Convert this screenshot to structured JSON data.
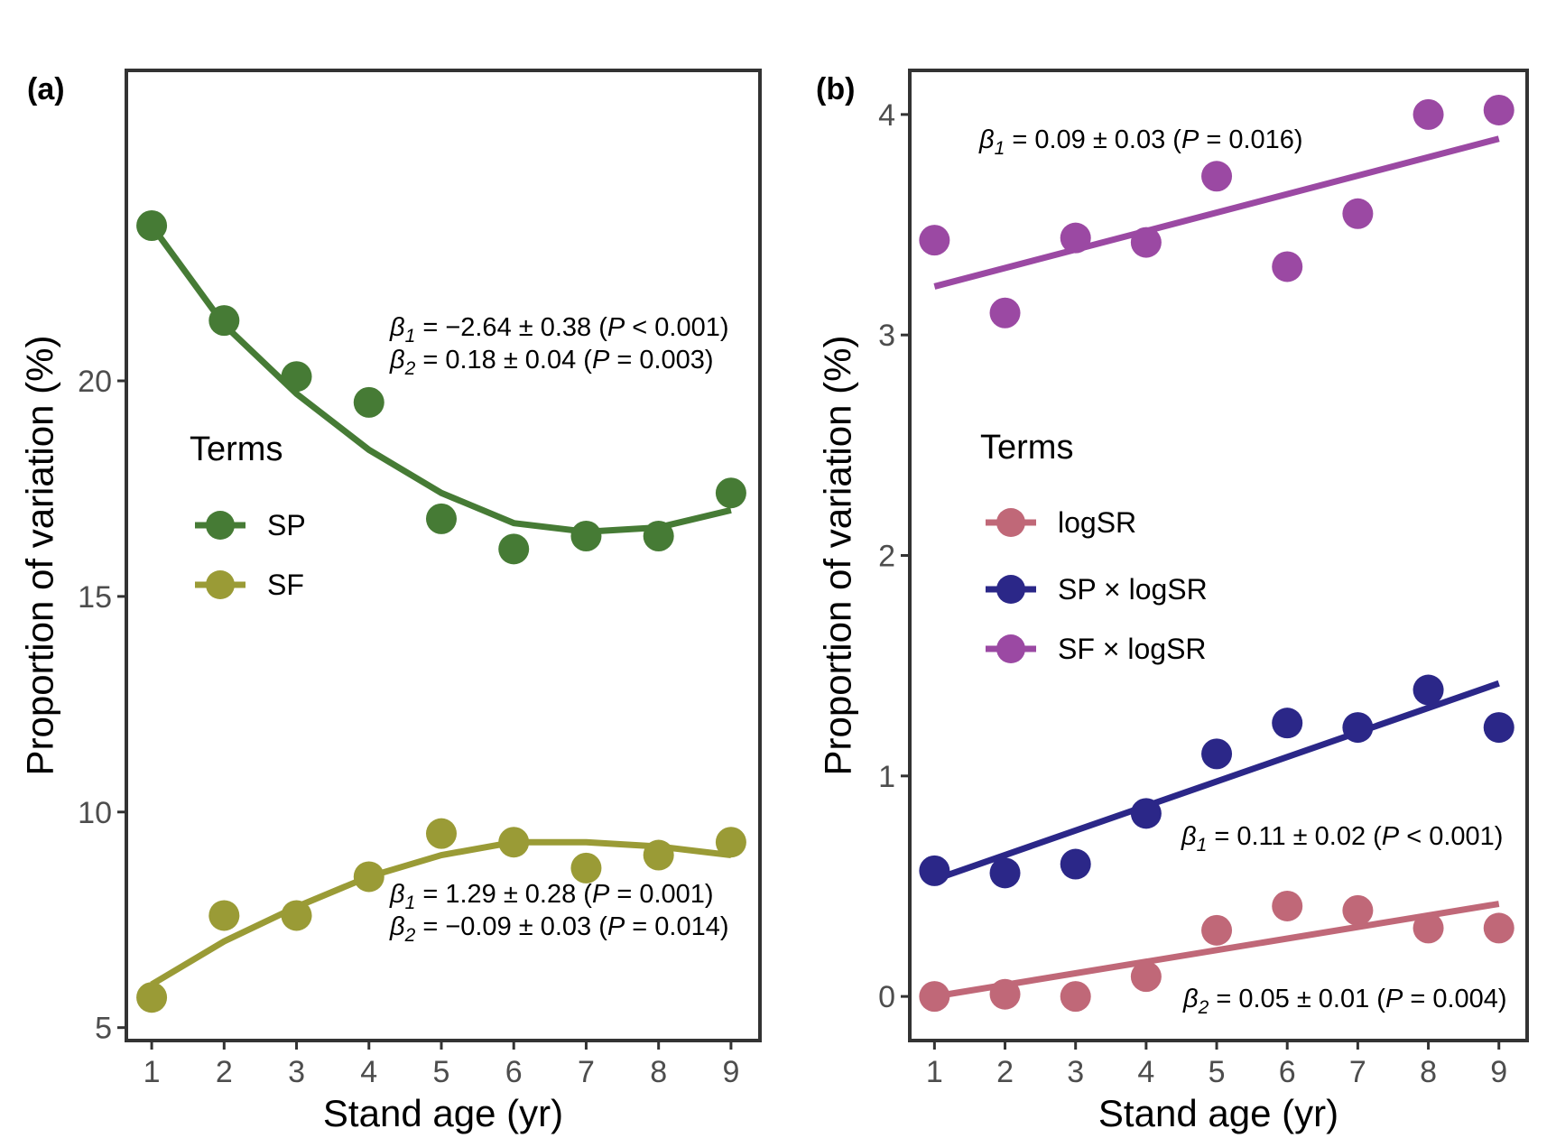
{
  "chart_data": [
    {
      "type": "scatter",
      "panel_label": "(a)",
      "xlabel": "Stand age (yr)",
      "ylabel": "Proportion of variation (%)",
      "xlim": [
        0.65,
        9.4
      ],
      "ylim": [
        4.7,
        27.2
      ],
      "x_ticks": [
        1,
        2,
        3,
        4,
        5,
        6,
        7,
        8,
        9
      ],
      "y_ticks": [
        5,
        10,
        15,
        20
      ],
      "legend": {
        "title": "Terms",
        "position": "center-left"
      },
      "series": [
        {
          "name": "SP",
          "color": "#467b35",
          "x": [
            1,
            2,
            3,
            4,
            5,
            6,
            7,
            8,
            9
          ],
          "y": [
            23.6,
            21.4,
            20.1,
            19.5,
            16.8,
            16.1,
            16.4,
            16.4,
            17.4
          ],
          "fit": [
            23.6,
            21.3,
            19.7,
            18.4,
            17.4,
            16.7,
            16.5,
            16.6,
            17.0
          ]
        },
        {
          "name": "SF",
          "color": "#9a9b36",
          "x": [
            1,
            2,
            3,
            4,
            5,
            6,
            7,
            8,
            9
          ],
          "y": [
            5.7,
            7.6,
            7.6,
            8.5,
            9.5,
            9.3,
            8.7,
            9.0,
            9.3
          ],
          "fit": [
            6.0,
            7.0,
            7.8,
            8.5,
            9.0,
            9.3,
            9.3,
            9.2,
            9.0
          ]
        }
      ],
      "annotations": [
        {
          "lines": [
            {
              "sym": "β",
              "sub": "1",
              "text": " = −2.64 ± 0.38 (",
              "it": "P",
              "rest": " < 0.001)"
            },
            {
              "sym": "β",
              "sub": "2",
              "text": " = 0.18 ± 0.04 (",
              "it": "P",
              "rest": " = 0.003)"
            }
          ]
        },
        {
          "lines": [
            {
              "sym": "β",
              "sub": "1",
              "text": " = 1.29 ± 0.28 (",
              "it": "P",
              "rest": " = 0.001)"
            },
            {
              "sym": "β",
              "sub": "2",
              "text": " = −0.09 ± 0.03 (",
              "it": "P",
              "rest": " = 0.014)"
            }
          ]
        }
      ]
    },
    {
      "type": "scatter",
      "panel_label": "(b)",
      "xlabel": "Stand age (yr)",
      "ylabel": "Proportion of variation (%)",
      "xlim": [
        0.65,
        9.4
      ],
      "ylim": [
        -0.2,
        4.2
      ],
      "x_ticks": [
        1,
        2,
        3,
        4,
        5,
        6,
        7,
        8,
        9
      ],
      "y_ticks": [
        0,
        1,
        2,
        3,
        4
      ],
      "legend": {
        "title": "Terms",
        "position": "center-left"
      },
      "series": [
        {
          "name": "logSR",
          "color": "#c06878",
          "x": [
            1,
            2,
            3,
            4,
            5,
            6,
            7,
            8,
            9
          ],
          "y": [
            0.0,
            0.01,
            0.0,
            0.09,
            0.3,
            0.41,
            0.39,
            0.31,
            0.31
          ],
          "fit_line": [
            [
              1,
              0.0
            ],
            [
              9,
              0.42
            ]
          ]
        },
        {
          "name": "SP × logSR",
          "color": "#2b2788",
          "x": [
            1,
            2,
            3,
            4,
            5,
            6,
            7,
            8,
            9
          ],
          "y": [
            0.57,
            0.56,
            0.6,
            0.83,
            1.1,
            1.24,
            1.22,
            1.39,
            1.22
          ],
          "fit_line": [
            [
              1,
              0.53
            ],
            [
              9,
              1.42
            ]
          ]
        },
        {
          "name": "SF × logSR",
          "color": "#9b49a3",
          "x": [
            1,
            2,
            3,
            4,
            5,
            6,
            7,
            8,
            9
          ],
          "y": [
            3.43,
            3.1,
            3.44,
            3.42,
            3.72,
            3.31,
            3.55,
            4.0,
            4.02
          ],
          "fit_line": [
            [
              1,
              3.22
            ],
            [
              9,
              3.89
            ]
          ]
        }
      ],
      "annotations": [
        {
          "lines": [
            {
              "sym": "β",
              "sub": "1",
              "text": " = 0.09 ± 0.03 (",
              "it": "P",
              "rest": " = 0.016)"
            }
          ]
        },
        {
          "lines": [
            {
              "sym": "β",
              "sub": "1",
              "text": " = 0.11 ± 0.02 (",
              "it": "P",
              "rest": " < 0.001)"
            }
          ]
        },
        {
          "lines": [
            {
              "sym": "β",
              "sub": "2",
              "text": " = 0.05 ± 0.01 (",
              "it": "P",
              "rest": " = 0.004)"
            }
          ]
        }
      ]
    }
  ]
}
